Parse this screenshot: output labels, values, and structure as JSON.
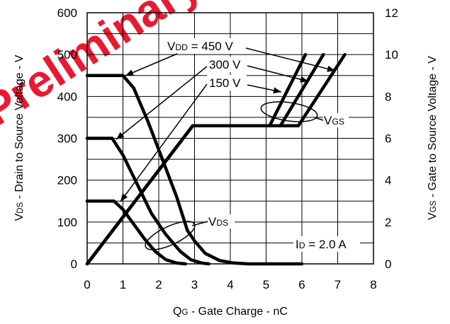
{
  "watermark": "Preliminary design",
  "chart_data": {
    "type": "line",
    "title": "",
    "xlabel": {
      "main": "Q",
      "sub": "G",
      "rest": " - Gate Charge - nC"
    },
    "ylabel_left": {
      "main": "V",
      "sub": "DS",
      "rest": " - Drain to Source Voltage - V"
    },
    "ylabel_right": {
      "main": "V",
      "sub": "GS",
      "rest": " - Gate to Source Voltage - V"
    },
    "xlim": [
      0,
      8
    ],
    "ylim_left": [
      0,
      600
    ],
    "ylim_right": [
      0,
      12
    ],
    "x_ticks": [
      "0",
      "1",
      "2",
      "3",
      "4",
      "5",
      "6",
      "7",
      "8"
    ],
    "y_ticks_left": [
      "0",
      "100",
      "200",
      "300",
      "400",
      "500",
      "600"
    ],
    "y_ticks_right": [
      "0",
      "2",
      "4",
      "6",
      "8",
      "10",
      "12"
    ],
    "grid": true,
    "series": [
      {
        "group": "VDS",
        "vdd": 450,
        "axis": "left",
        "x": [
          0,
          1.0,
          1.3,
          1.7,
          2.1,
          2.5,
          2.8,
          3.0,
          3.3,
          3.7,
          4.1,
          4.5,
          6.0
        ],
        "y": [
          450,
          450,
          420,
          340,
          250,
          160,
          80,
          55,
          25,
          8,
          2,
          0,
          0
        ]
      },
      {
        "group": "VDS",
        "vdd": 300,
        "axis": "left",
        "x": [
          0,
          0.7,
          1.0,
          1.4,
          1.8,
          2.2,
          2.6,
          2.9,
          3.2,
          3.4
        ],
        "y": [
          300,
          300,
          260,
          190,
          120,
          70,
          30,
          10,
          2,
          0
        ]
      },
      {
        "group": "VDS",
        "vdd": 150,
        "axis": "left",
        "x": [
          0,
          0.75,
          1.0,
          1.3,
          1.6,
          1.9,
          2.2,
          2.5,
          2.75
        ],
        "y": [
          150,
          150,
          130,
          95,
          60,
          30,
          10,
          2,
          0
        ]
      },
      {
        "group": "VGS",
        "vdd": 150,
        "axis": "right",
        "x": [
          0,
          2.95,
          5.1,
          6.1
        ],
        "y": [
          0,
          6.6,
          6.6,
          10.0
        ]
      },
      {
        "group": "VGS",
        "vdd": 300,
        "axis": "right",
        "x": [
          0,
          2.95,
          5.4,
          6.6
        ],
        "y": [
          0,
          6.6,
          6.6,
          10.0
        ]
      },
      {
        "group": "VGS",
        "vdd": 450,
        "axis": "right",
        "x": [
          0,
          2.95,
          5.9,
          7.2
        ],
        "y": [
          0,
          6.6,
          6.6,
          10.0
        ]
      }
    ],
    "annotations": {
      "vdd_label": {
        "main": "V",
        "sub": "DD",
        "rest": " = 450 V"
      },
      "vdd_300": "300 V",
      "vdd_150": "150 V",
      "vgs_label": {
        "main": "V",
        "sub": "GS"
      },
      "vds_label": {
        "main": "V",
        "sub": "DS"
      },
      "id_label": {
        "main": "I",
        "sub": "D",
        "rest": " = 2.0 A"
      }
    }
  }
}
